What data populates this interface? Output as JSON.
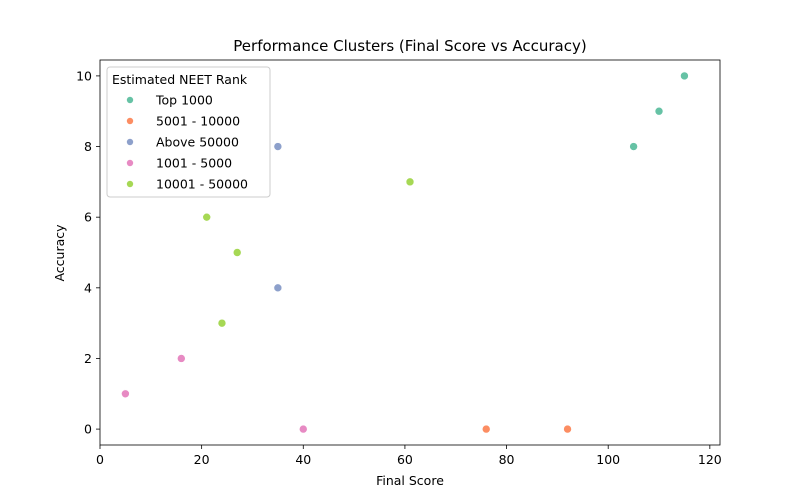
{
  "chart_data": {
    "type": "scatter",
    "title": "Performance Clusters (Final Score vs Accuracy)",
    "xlabel": "Final Score",
    "ylabel": "Accuracy",
    "xlim": [
      0,
      122
    ],
    "ylim": [
      -0.45,
      10.45
    ],
    "xticks": [
      0,
      20,
      40,
      60,
      80,
      100,
      120
    ],
    "yticks": [
      0,
      2,
      4,
      6,
      8,
      10
    ],
    "grid": false,
    "legend": {
      "title": "Estimated NEET Rank",
      "position": "upper-left"
    },
    "series": [
      {
        "name": "Top 1000",
        "color": "#66c2a5",
        "points": [
          [
            105,
            8
          ],
          [
            110,
            9
          ],
          [
            115,
            10
          ]
        ]
      },
      {
        "name": "5001 - 10000",
        "color": "#fc8d62",
        "points": [
          [
            76,
            0
          ],
          [
            92,
            0
          ]
        ]
      },
      {
        "name": "Above 50000",
        "color": "#8da0cb",
        "points": [
          [
            35,
            8
          ],
          [
            35,
            4
          ]
        ]
      },
      {
        "name": "1001 - 5000",
        "color": "#e78ac3",
        "points": [
          [
            5,
            1
          ],
          [
            16,
            2
          ],
          [
            40,
            0
          ]
        ]
      },
      {
        "name": "10001 - 50000",
        "color": "#a6d854",
        "points": [
          [
            21,
            6
          ],
          [
            27,
            5
          ],
          [
            24,
            3
          ],
          [
            61,
            7
          ]
        ]
      }
    ]
  }
}
